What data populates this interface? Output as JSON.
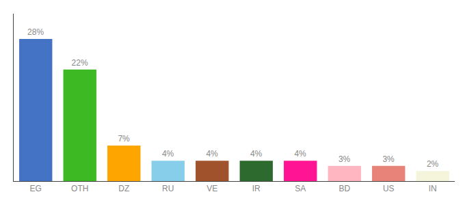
{
  "chart_data": {
    "type": "bar",
    "categories": [
      "EG",
      "OTH",
      "DZ",
      "RU",
      "VE",
      "IR",
      "SA",
      "BD",
      "US",
      "IN"
    ],
    "values": [
      28,
      22,
      7,
      4,
      4,
      4,
      4,
      3,
      3,
      2
    ],
    "value_labels": [
      "28%",
      "22%",
      "7%",
      "4%",
      "4%",
      "4%",
      "4%",
      "3%",
      "3%",
      "2%"
    ],
    "colors": [
      "#4472C4",
      "#3CB923",
      "#FFA500",
      "#87CEEB",
      "#A0522D",
      "#2D6A2D",
      "#FF1493",
      "#FFB6C1",
      "#E8837A",
      "#F5F5DC"
    ],
    "ylim": [
      0,
      33
    ],
    "data_labels": true,
    "tick_labels": "x",
    "grid": false
  }
}
